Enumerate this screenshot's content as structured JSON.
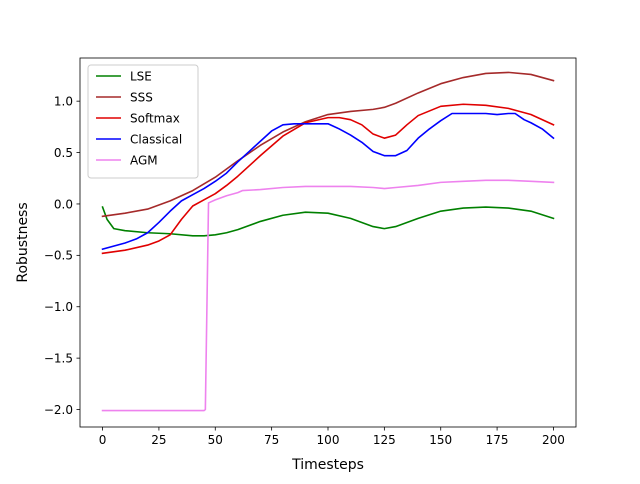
{
  "chart_data": {
    "type": "line",
    "title": "",
    "xlabel": "Timesteps",
    "ylabel": "Robustness",
    "xlim": [
      -10,
      210
    ],
    "ylim": [
      -2.17,
      1.42
    ],
    "xticks": [
      0,
      25,
      50,
      75,
      100,
      125,
      150,
      175,
      200
    ],
    "xtick_labels": [
      "0",
      "25",
      "50",
      "75",
      "100",
      "125",
      "150",
      "175",
      "200"
    ],
    "yticks": [
      -2.0,
      -1.5,
      -1.0,
      -0.5,
      0.0,
      0.5,
      1.0
    ],
    "ytick_labels": [
      "−2.0",
      "−1.5",
      "−1.0",
      "−0.5",
      "0.0",
      "0.5",
      "1.0"
    ],
    "grid": false,
    "legend_position": "top-left",
    "series": [
      {
        "name": "LSE",
        "color": "#008000",
        "x": [
          0,
          2,
          5,
          10,
          20,
          30,
          40,
          45,
          50,
          55,
          60,
          70,
          80,
          90,
          100,
          110,
          120,
          125,
          130,
          140,
          150,
          160,
          170,
          180,
          190,
          200
        ],
        "y": [
          -0.03,
          -0.15,
          -0.24,
          -0.26,
          -0.28,
          -0.29,
          -0.31,
          -0.31,
          -0.3,
          -0.28,
          -0.25,
          -0.17,
          -0.11,
          -0.08,
          -0.09,
          -0.14,
          -0.22,
          -0.24,
          -0.22,
          -0.14,
          -0.07,
          -0.04,
          -0.03,
          -0.04,
          -0.07,
          -0.14
        ]
      },
      {
        "name": "SSS",
        "color": "#a52a2a",
        "x": [
          0,
          10,
          20,
          30,
          40,
          50,
          60,
          70,
          80,
          90,
          100,
          110,
          120,
          125,
          130,
          140,
          150,
          160,
          170,
          180,
          190,
          200
        ],
        "y": [
          -0.12,
          -0.09,
          -0.05,
          0.03,
          0.13,
          0.26,
          0.42,
          0.57,
          0.7,
          0.8,
          0.87,
          0.9,
          0.92,
          0.94,
          0.98,
          1.08,
          1.17,
          1.23,
          1.27,
          1.28,
          1.26,
          1.2
        ]
      },
      {
        "name": "Softmax",
        "color": "#e00000",
        "x": [
          0,
          10,
          20,
          25,
          30,
          35,
          40,
          45,
          50,
          55,
          60,
          70,
          80,
          90,
          100,
          105,
          110,
          115,
          120,
          125,
          130,
          135,
          140,
          150,
          160,
          170,
          180,
          190,
          200
        ],
        "y": [
          -0.48,
          -0.45,
          -0.4,
          -0.36,
          -0.3,
          -0.15,
          -0.02,
          0.04,
          0.1,
          0.18,
          0.27,
          0.47,
          0.66,
          0.79,
          0.84,
          0.84,
          0.82,
          0.77,
          0.68,
          0.64,
          0.67,
          0.77,
          0.86,
          0.95,
          0.97,
          0.96,
          0.93,
          0.87,
          0.77
        ]
      },
      {
        "name": "Classical",
        "color": "#0000ff",
        "x": [
          0,
          10,
          15,
          20,
          25,
          30,
          35,
          40,
          45,
          50,
          55,
          60,
          65,
          70,
          75,
          80,
          85,
          90,
          95,
          100,
          105,
          110,
          115,
          120,
          125,
          130,
          135,
          140,
          145,
          150,
          155,
          160,
          165,
          170,
          175,
          180,
          183,
          187,
          190,
          195,
          200
        ],
        "y": [
          -0.44,
          -0.38,
          -0.34,
          -0.28,
          -0.18,
          -0.07,
          0.03,
          0.09,
          0.15,
          0.22,
          0.3,
          0.41,
          0.51,
          0.61,
          0.71,
          0.77,
          0.78,
          0.78,
          0.78,
          0.78,
          0.73,
          0.67,
          0.6,
          0.51,
          0.47,
          0.47,
          0.52,
          0.64,
          0.73,
          0.81,
          0.88,
          0.88,
          0.88,
          0.88,
          0.87,
          0.88,
          0.88,
          0.82,
          0.79,
          0.73,
          0.64
        ]
      },
      {
        "name": "AGM",
        "color": "#ee82ee",
        "x": [
          0,
          10,
          20,
          30,
          40,
          45,
          45.6,
          47,
          50,
          55,
          60,
          62,
          70,
          80,
          90,
          100,
          110,
          120,
          125,
          130,
          140,
          150,
          160,
          170,
          180,
          190,
          200
        ],
        "y": [
          -2.01,
          -2.01,
          -2.01,
          -2.01,
          -2.01,
          -2.01,
          -2.0,
          0.01,
          0.04,
          0.08,
          0.11,
          0.13,
          0.14,
          0.16,
          0.17,
          0.17,
          0.17,
          0.16,
          0.15,
          0.16,
          0.18,
          0.21,
          0.22,
          0.23,
          0.23,
          0.22,
          0.21
        ]
      }
    ]
  }
}
